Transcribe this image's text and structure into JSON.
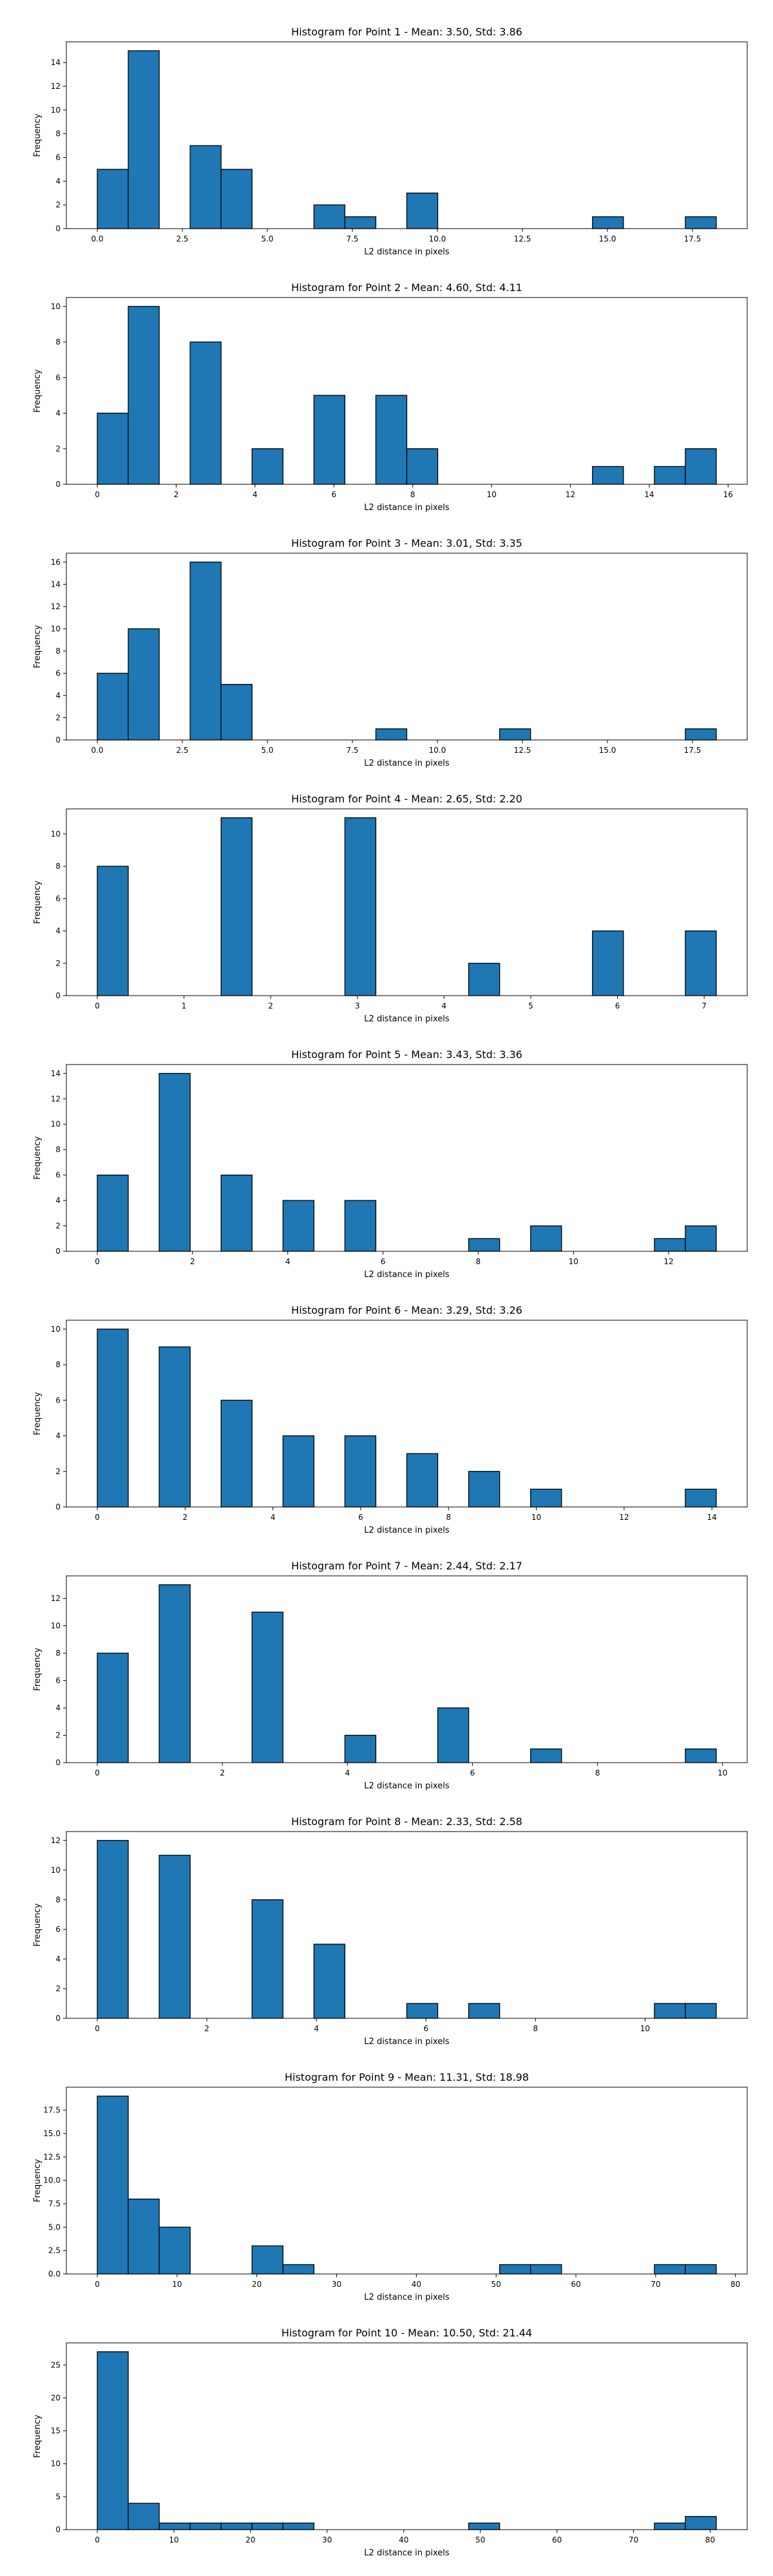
{
  "figure": {
    "background": "#ffffff",
    "bar_color": "#1f77b4",
    "edge_color": "#000000"
  },
  "chart_data": [
    {
      "type": "bar",
      "title": "Histogram for Point 1 - Mean: 3.50, Std: 3.86",
      "xlabel": "L2 distance in pixels",
      "ylabel": "Frequency",
      "xlim": [
        -0.91,
        19.11
      ],
      "ylim": [
        0,
        15.75
      ],
      "xticks": [
        0.0,
        2.5,
        5.0,
        7.5,
        10.0,
        12.5,
        15.0,
        17.5
      ],
      "xtick_labels": [
        "0.0",
        "2.5",
        "5.0",
        "7.5",
        "10.0",
        "12.5",
        "15.0",
        "17.5"
      ],
      "yticks": [
        0,
        2,
        4,
        6,
        8,
        10,
        12,
        14
      ],
      "ytick_labels": [
        "0",
        "2",
        "4",
        "6",
        "8",
        "10",
        "12",
        "14"
      ],
      "bins": [
        0.0,
        0.91,
        1.82,
        2.73,
        3.64,
        4.55,
        5.46,
        6.37,
        7.28,
        8.19,
        9.1,
        10.01,
        10.92,
        11.83,
        12.74,
        13.65,
        14.56,
        15.47,
        16.38,
        17.29,
        18.2
      ],
      "counts": [
        5,
        15,
        0,
        7,
        5,
        0,
        0,
        2,
        1,
        0,
        3,
        0,
        0,
        0,
        0,
        0,
        1,
        0,
        0,
        1
      ]
    },
    {
      "type": "bar",
      "title": "Histogram for Point 2 - Mean: 4.60, Std: 4.11",
      "xlabel": "L2 distance in pixels",
      "ylabel": "Frequency",
      "xlim": [
        -0.785,
        16.485
      ],
      "ylim": [
        0,
        10.5
      ],
      "xticks": [
        0,
        2,
        4,
        6,
        8,
        10,
        12,
        14,
        16
      ],
      "xtick_labels": [
        "0",
        "2",
        "4",
        "6",
        "8",
        "10",
        "12",
        "14",
        "16"
      ],
      "yticks": [
        0,
        2,
        4,
        6,
        8,
        10
      ],
      "ytick_labels": [
        "0",
        "2",
        "4",
        "6",
        "8",
        "10"
      ],
      "bins": [
        0.0,
        0.785,
        1.57,
        2.355,
        3.14,
        3.925,
        4.71,
        5.495,
        6.28,
        7.065,
        7.85,
        8.635,
        9.42,
        10.205,
        10.99,
        11.775,
        12.56,
        13.345,
        14.13,
        14.915,
        15.7
      ],
      "counts": [
        4,
        10,
        0,
        8,
        0,
        2,
        0,
        5,
        0,
        5,
        2,
        0,
        0,
        0,
        0,
        0,
        1,
        0,
        1,
        2
      ]
    },
    {
      "type": "bar",
      "title": "Histogram for Point 3 - Mean: 3.01, Std: 3.35",
      "xlabel": "L2 distance in pixels",
      "ylabel": "Frequency",
      "xlim": [
        -0.91,
        19.11
      ],
      "ylim": [
        0,
        16.8
      ],
      "xticks": [
        0.0,
        2.5,
        5.0,
        7.5,
        10.0,
        12.5,
        15.0,
        17.5
      ],
      "xtick_labels": [
        "0.0",
        "2.5",
        "5.0",
        "7.5",
        "10.0",
        "12.5",
        "15.0",
        "17.5"
      ],
      "yticks": [
        0,
        2,
        4,
        6,
        8,
        10,
        12,
        14,
        16
      ],
      "ytick_labels": [
        "0",
        "2",
        "4",
        "6",
        "8",
        "10",
        "12",
        "14",
        "16"
      ],
      "bins": [
        0.0,
        0.91,
        1.82,
        2.73,
        3.64,
        4.55,
        5.46,
        6.37,
        7.28,
        8.19,
        9.1,
        10.01,
        10.92,
        11.83,
        12.74,
        13.65,
        14.56,
        15.47,
        16.38,
        17.29,
        18.2
      ],
      "counts": [
        6,
        10,
        0,
        16,
        5,
        0,
        0,
        0,
        0,
        1,
        0,
        0,
        0,
        1,
        0,
        0,
        0,
        0,
        0,
        1
      ]
    },
    {
      "type": "bar",
      "title": "Histogram for Point 4 - Mean: 2.65, Std: 2.20",
      "xlabel": "L2 distance in pixels",
      "ylabel": "Frequency",
      "xlim": [
        -0.357,
        7.497
      ],
      "ylim": [
        0,
        11.55
      ],
      "xticks": [
        0,
        1,
        2,
        3,
        4,
        5,
        6,
        7
      ],
      "xtick_labels": [
        "0",
        "1",
        "2",
        "3",
        "4",
        "5",
        "6",
        "7"
      ],
      "yticks": [
        0,
        2,
        4,
        6,
        8,
        10
      ],
      "ytick_labels": [
        "0",
        "2",
        "4",
        "6",
        "8",
        "10"
      ],
      "bins": [
        0.0,
        0.357,
        0.714,
        1.071,
        1.428,
        1.785,
        2.142,
        2.499,
        2.856,
        3.213,
        3.57,
        3.927,
        4.284,
        4.641,
        4.998,
        5.355,
        5.712,
        6.069,
        6.426,
        6.783,
        7.14
      ],
      "counts": [
        8,
        0,
        0,
        0,
        11,
        0,
        0,
        0,
        11,
        0,
        0,
        0,
        2,
        0,
        0,
        0,
        4,
        0,
        0,
        4
      ]
    },
    {
      "type": "bar",
      "title": "Histogram for Point 5 - Mean: 3.43, Std: 3.36",
      "xlabel": "L2 distance in pixels",
      "ylabel": "Frequency",
      "xlim": [
        -0.65,
        13.65
      ],
      "ylim": [
        0,
        14.7
      ],
      "xticks": [
        0,
        2,
        4,
        6,
        8,
        10,
        12
      ],
      "xtick_labels": [
        "0",
        "2",
        "4",
        "6",
        "8",
        "10",
        "12"
      ],
      "yticks": [
        0,
        2,
        4,
        6,
        8,
        10,
        12,
        14
      ],
      "ytick_labels": [
        "0",
        "2",
        "4",
        "6",
        "8",
        "10",
        "12",
        "14"
      ],
      "bins": [
        0.0,
        0.65,
        1.3,
        1.95,
        2.6,
        3.25,
        3.9,
        4.55,
        5.2,
        5.85,
        6.5,
        7.15,
        7.8,
        8.45,
        9.1,
        9.75,
        10.4,
        11.05,
        11.7,
        12.35,
        13.0
      ],
      "counts": [
        6,
        0,
        14,
        0,
        6,
        0,
        4,
        0,
        4,
        0,
        0,
        0,
        1,
        0,
        2,
        0,
        0,
        0,
        1,
        2
      ]
    },
    {
      "type": "bar",
      "title": "Histogram for Point 6 - Mean: 3.29, Std: 3.26",
      "xlabel": "L2 distance in pixels",
      "ylabel": "Frequency",
      "xlim": [
        -0.705,
        14.805
      ],
      "ylim": [
        0,
        10.5
      ],
      "xticks": [
        0,
        2,
        4,
        6,
        8,
        10,
        12,
        14
      ],
      "xtick_labels": [
        "0",
        "2",
        "4",
        "6",
        "8",
        "10",
        "12",
        "14"
      ],
      "yticks": [
        0,
        2,
        4,
        6,
        8,
        10
      ],
      "ytick_labels": [
        "0",
        "2",
        "4",
        "6",
        "8",
        "10"
      ],
      "bins": [
        0.0,
        0.705,
        1.41,
        2.115,
        2.82,
        3.525,
        4.23,
        4.935,
        5.64,
        6.345,
        7.05,
        7.755,
        8.46,
        9.165,
        9.87,
        10.575,
        11.28,
        11.985,
        12.69,
        13.395,
        14.1
      ],
      "counts": [
        10,
        0,
        9,
        0,
        6,
        0,
        4,
        0,
        4,
        0,
        3,
        0,
        2,
        0,
        1,
        0,
        0,
        0,
        0,
        1
      ]
    },
    {
      "type": "bar",
      "title": "Histogram for Point 7 - Mean: 2.44, Std: 2.17",
      "xlabel": "L2 distance in pixels",
      "ylabel": "Frequency",
      "xlim": [
        -0.495,
        10.395
      ],
      "ylim": [
        0,
        13.65
      ],
      "xticks": [
        0,
        2,
        4,
        6,
        8,
        10
      ],
      "xtick_labels": [
        "0",
        "2",
        "4",
        "6",
        "8",
        "10"
      ],
      "yticks": [
        0,
        2,
        4,
        6,
        8,
        10,
        12
      ],
      "ytick_labels": [
        "0",
        "2",
        "4",
        "6",
        "8",
        "10",
        "12"
      ],
      "bins": [
        0.0,
        0.495,
        0.99,
        1.485,
        1.98,
        2.475,
        2.97,
        3.465,
        3.96,
        4.455,
        4.95,
        5.445,
        5.94,
        6.435,
        6.93,
        7.425,
        7.92,
        8.415,
        8.91,
        9.405,
        9.9
      ],
      "counts": [
        8,
        0,
        13,
        0,
        0,
        11,
        0,
        0,
        2,
        0,
        0,
        4,
        0,
        0,
        1,
        0,
        0,
        0,
        0,
        1
      ]
    },
    {
      "type": "bar",
      "title": "Histogram for Point 8 - Mean: 2.33, Std: 2.58",
      "xlabel": "L2 distance in pixels",
      "ylabel": "Frequency",
      "xlim": [
        -0.565,
        11.865
      ],
      "ylim": [
        0,
        12.6
      ],
      "xticks": [
        0,
        2,
        4,
        6,
        8,
        10
      ],
      "xtick_labels": [
        "0",
        "2",
        "4",
        "6",
        "8",
        "10"
      ],
      "yticks": [
        0,
        2,
        4,
        6,
        8,
        10,
        12
      ],
      "ytick_labels": [
        "0",
        "2",
        "4",
        "6",
        "8",
        "10",
        "12"
      ],
      "bins": [
        0.0,
        0.565,
        1.13,
        1.695,
        2.26,
        2.825,
        3.39,
        3.955,
        4.52,
        5.085,
        5.65,
        6.215,
        6.78,
        7.345,
        7.91,
        8.475,
        9.04,
        9.605,
        10.17,
        10.735,
        11.3
      ],
      "counts": [
        12,
        0,
        11,
        0,
        0,
        8,
        0,
        5,
        0,
        0,
        1,
        0,
        1,
        0,
        0,
        0,
        0,
        0,
        1,
        1
      ]
    },
    {
      "type": "bar",
      "title": "Histogram for Point 9 - Mean: 11.31, Std: 18.98",
      "xlabel": "L2 distance in pixels",
      "ylabel": "Frequency",
      "xlim": [
        -3.88,
        81.48
      ],
      "ylim": [
        0,
        19.95
      ],
      "xticks": [
        0,
        10,
        20,
        30,
        40,
        50,
        60,
        70,
        80
      ],
      "xtick_labels": [
        "0",
        "10",
        "20",
        "30",
        "40",
        "50",
        "60",
        "70",
        "80"
      ],
      "yticks": [
        0,
        2.5,
        5.0,
        7.5,
        10.0,
        12.5,
        15.0,
        17.5
      ],
      "ytick_labels": [
        "0.0",
        "2.5",
        "5.0",
        "7.5",
        "10.0",
        "12.5",
        "15.0",
        "17.5"
      ],
      "bins": [
        0.0,
        3.88,
        7.76,
        11.64,
        15.52,
        19.4,
        23.28,
        27.16,
        31.04,
        34.92,
        38.8,
        42.68,
        46.56,
        50.44,
        54.32,
        58.2,
        62.08,
        65.96,
        69.84,
        73.72,
        77.6
      ],
      "counts": [
        19,
        8,
        5,
        0,
        0,
        3,
        1,
        0,
        0,
        0,
        0,
        0,
        0,
        1,
        1,
        0,
        0,
        0,
        1,
        1
      ]
    },
    {
      "type": "bar",
      "title": "Histogram for Point 10 - Mean: 10.50, Std: 21.44",
      "xlabel": "L2 distance in pixels",
      "ylabel": "Frequency",
      "xlim": [
        -4.04,
        84.84
      ],
      "ylim": [
        0,
        28.35
      ],
      "xticks": [
        0,
        10,
        20,
        30,
        40,
        50,
        60,
        70,
        80
      ],
      "xtick_labels": [
        "0",
        "10",
        "20",
        "30",
        "40",
        "50",
        "60",
        "70",
        "80"
      ],
      "yticks": [
        0,
        5,
        10,
        15,
        20,
        25
      ],
      "ytick_labels": [
        "0",
        "5",
        "10",
        "15",
        "20",
        "25"
      ],
      "bins": [
        0.0,
        4.04,
        8.08,
        12.12,
        16.16,
        20.2,
        24.24,
        28.28,
        32.32,
        36.36,
        40.4,
        44.44,
        48.48,
        52.52,
        56.56,
        60.6,
        64.64,
        68.68,
        72.72,
        76.76,
        80.8
      ],
      "counts": [
        27,
        4,
        1,
        1,
        1,
        1,
        1,
        0,
        0,
        0,
        0,
        0,
        1,
        0,
        0,
        0,
        0,
        0,
        1,
        2
      ]
    }
  ]
}
